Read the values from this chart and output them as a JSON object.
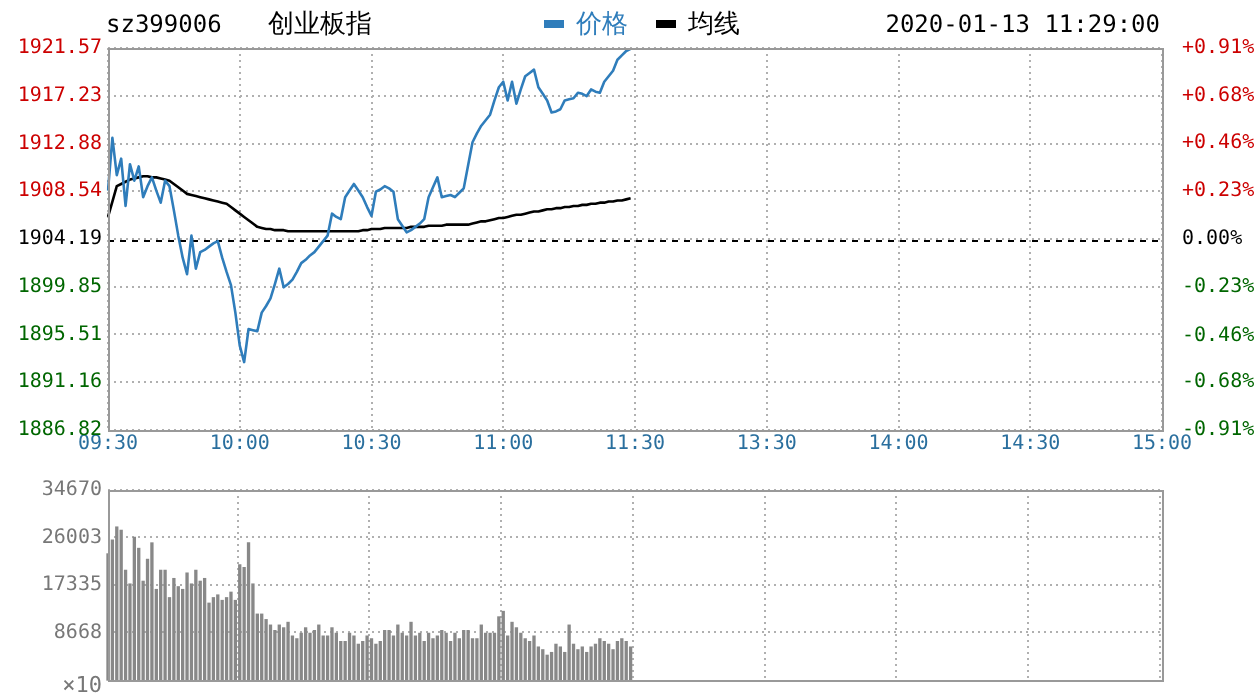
{
  "chart_data": [
    {
      "type": "line",
      "title": "创业板指",
      "subtitle": "sz399006",
      "annotations": [
        "2020-01-13 11:29:00"
      ],
      "legend": "top",
      "grid": true,
      "marker": "none",
      "line_style": "solid",
      "categories": [
        "09:30",
        null,
        null,
        null,
        null,
        null,
        null,
        null,
        null,
        null,
        null,
        null,
        null,
        null,
        null,
        null,
        null,
        null,
        null,
        null,
        null,
        null,
        null,
        null,
        null,
        null,
        null,
        null,
        null,
        null,
        "10:00",
        null,
        null,
        null,
        null,
        null,
        null,
        null,
        null,
        null,
        null,
        null,
        null,
        null,
        null,
        null,
        null,
        null,
        null,
        null,
        null,
        null,
        null,
        null,
        null,
        null,
        null,
        null,
        null,
        null,
        "10:30",
        null,
        null,
        null,
        null,
        null,
        null,
        null,
        null,
        null,
        null,
        null,
        null,
        null,
        null,
        null,
        null,
        null,
        null,
        null,
        null,
        null,
        null,
        null,
        null,
        null,
        null,
        null,
        null,
        null,
        "11:00",
        null,
        null,
        null,
        null,
        null,
        null,
        null,
        null,
        null,
        null,
        null,
        null,
        null,
        null,
        null,
        null,
        null,
        null,
        null,
        null,
        null,
        null,
        null,
        null,
        null,
        null,
        null,
        null,
        null,
        "11:30",
        null,
        null,
        null,
        null,
        null,
        null,
        null,
        null,
        null,
        null,
        null,
        null,
        null,
        null,
        null,
        null,
        null,
        null,
        null,
        null,
        null,
        null,
        null,
        null,
        null,
        null,
        null,
        null,
        null,
        "13:30",
        null,
        null,
        null,
        null,
        null,
        null,
        null,
        null,
        null,
        null,
        null,
        null,
        null,
        null,
        null,
        null,
        null,
        null,
        null,
        null,
        null,
        null,
        null,
        null,
        null,
        null,
        null,
        null,
        null,
        "14:00",
        null,
        null,
        null,
        null,
        null,
        null,
        null,
        null,
        null,
        null,
        null,
        null,
        null,
        null,
        null,
        null,
        null,
        null,
        null,
        null,
        null,
        null,
        null,
        null,
        null,
        null,
        null,
        null,
        null,
        "14:30",
        null,
        null,
        null,
        null,
        null,
        null,
        null,
        null,
        null,
        null,
        null,
        null,
        null,
        null,
        null,
        null,
        null,
        null,
        null,
        null,
        null,
        null,
        null,
        null,
        null,
        null,
        null,
        null,
        null,
        "15:00"
      ],
      "ylim": [
        1886.82,
        1921.57
      ],
      "yticks": [
        1886.82,
        1891.16,
        1895.51,
        1899.85,
        1904.19,
        1908.54,
        1912.88,
        1917.23,
        1921.57
      ],
      "y2lim": [
        -0.91,
        0.91
      ],
      "y2ticks": [
        {
          "value": -0.91,
          "label": "-0.91%"
        },
        {
          "value": -0.68,
          "label": "-0.68%"
        },
        {
          "value": -0.46,
          "label": "-0.46%"
        },
        {
          "value": -0.23,
          "label": "-0.23%"
        },
        {
          "value": 0,
          "label": "0.00%"
        },
        {
          "value": 0.23,
          "label": "+0.23%"
        },
        {
          "value": 0.46,
          "label": "+0.46%"
        },
        {
          "value": 0.68,
          "label": "+0.68%"
        },
        {
          "value": 0.91,
          "label": "+0.91%"
        }
      ],
      "ref_lines": [
        {
          "axis": "y",
          "value": 1904.19,
          "color": "#000000",
          "line_style": "dashed"
        }
      ],
      "series": [
        {
          "name": "价格",
          "color": "#2f7dbb",
          "values": [
            1908.6,
            1913.4,
            1910.0,
            1911.5,
            1907.2,
            1911.0,
            1909.5,
            1910.8,
            1908.0,
            1909.0,
            1909.8,
            1908.6,
            1907.5,
            1909.5,
            1909.0,
            1906.8,
            1904.5,
            1902.5,
            1901.0,
            1904.5,
            1901.5,
            1903.0,
            1903.2,
            1903.5,
            1903.8,
            1904.0,
            1902.5,
            1901.2,
            1900.0,
            1897.5,
            1894.5,
            1893.0,
            1896.0,
            1895.9,
            1895.8,
            1897.5,
            1898.1,
            1898.8,
            1900.1,
            1901.5,
            1899.8,
            1900.1,
            1900.5,
            1901.2,
            1902.0,
            1902.3,
            1902.7,
            1903.0,
            1903.5,
            1904.0,
            1904.5,
            1906.5,
            1906.2,
            1906.0,
            1908.0,
            1908.6,
            1909.2,
            1908.6,
            1908.0,
            1907.1,
            1906.3,
            1908.5,
            1908.7,
            1909.0,
            1908.8,
            1908.5,
            1906.0,
            1905.4,
            1904.8,
            1905.0,
            1905.3,
            1905.6,
            1906.0,
            1908.0,
            1908.9,
            1909.8,
            1908.0,
            1908.1,
            1908.2,
            1908.0,
            1908.4,
            1908.8,
            1910.9,
            1913.0,
            1913.8,
            1914.5,
            1915.0,
            1915.5,
            1916.8,
            1918.0,
            1918.5,
            1916.8,
            1918.5,
            1916.5,
            1917.8,
            1919.0,
            1919.3,
            1919.6,
            1918.0,
            1917.4,
            1916.8,
            1915.7,
            1915.8,
            1916.0,
            1916.8,
            1916.9,
            1917.0,
            1917.5,
            1917.4,
            1917.2,
            1917.8,
            1917.6,
            1917.5,
            1918.5,
            1919.0,
            1919.5,
            1920.5,
            1920.9,
            1921.3,
            1921.5,
            null,
            null,
            null,
            null,
            null,
            null,
            null,
            null,
            null,
            null,
            null,
            null,
            null,
            null,
            null,
            null,
            null,
            null,
            null,
            null,
            null,
            null,
            null,
            null,
            null,
            null,
            null,
            null,
            null,
            null,
            null,
            null,
            null,
            null,
            null,
            null,
            null,
            null,
            null,
            null,
            null,
            null,
            null,
            null,
            null,
            null,
            null,
            null,
            null,
            null,
            null,
            null,
            null,
            null,
            null,
            null,
            null,
            null,
            null,
            null,
            null,
            null,
            null,
            null,
            null,
            null,
            null,
            null,
            null,
            null,
            null,
            null,
            null,
            null,
            null,
            null,
            null,
            null,
            null,
            null,
            null,
            null,
            null,
            null,
            null,
            null,
            null,
            null,
            null,
            null,
            null,
            null,
            null,
            null,
            null,
            null,
            null,
            null,
            null,
            null,
            null,
            null,
            null,
            null,
            null,
            null,
            null,
            null,
            null,
            null,
            null,
            null,
            null,
            null,
            null,
            null,
            null,
            null,
            null,
            null,
            null
          ]
        },
        {
          "name": "均线",
          "color": "#000000",
          "values": [
            1906.2,
            1907.6,
            1909.0,
            1909.2,
            1909.4,
            1909.6,
            1909.7,
            1909.8,
            1909.9,
            1909.9,
            1909.8,
            1909.8,
            1909.7,
            1909.6,
            1909.5,
            1909.2,
            1908.9,
            1908.6,
            1908.3,
            1908.2,
            1908.1,
            1908.0,
            1907.9,
            1907.8,
            1907.7,
            1907.6,
            1907.5,
            1907.4,
            1907.1,
            1906.8,
            1906.5,
            1906.2,
            1905.9,
            1905.6,
            1905.3,
            1905.2,
            1905.1,
            1905.1,
            1905.0,
            1905.0,
            1905.0,
            1904.9,
            1904.9,
            1904.9,
            1904.9,
            1904.9,
            1904.9,
            1904.9,
            1904.9,
            1904.9,
            1904.9,
            1904.9,
            1904.9,
            1904.9,
            1904.9,
            1904.9,
            1904.9,
            1904.9,
            1905.0,
            1905.0,
            1905.1,
            1905.1,
            1905.1,
            1905.2,
            1905.2,
            1905.2,
            1905.2,
            1905.2,
            1905.2,
            1905.3,
            1905.3,
            1905.3,
            1905.3,
            1905.4,
            1905.4,
            1905.4,
            1905.4,
            1905.5,
            1905.5,
            1905.5,
            1905.5,
            1905.5,
            1905.5,
            1905.6,
            1905.7,
            1905.8,
            1905.8,
            1905.9,
            1906.0,
            1906.1,
            1906.1,
            1906.2,
            1906.3,
            1906.4,
            1906.4,
            1906.5,
            1906.6,
            1906.7,
            1906.7,
            1906.8,
            1906.9,
            1906.9,
            1907.0,
            1907.0,
            1907.1,
            1907.1,
            1907.2,
            1907.2,
            1907.3,
            1907.3,
            1907.4,
            1907.4,
            1907.5,
            1907.5,
            1907.6,
            1907.6,
            1907.7,
            1907.7,
            1907.8,
            1907.9,
            null,
            null,
            null,
            null,
            null,
            null,
            null,
            null,
            null,
            null,
            null,
            null,
            null,
            null,
            null,
            null,
            null,
            null,
            null,
            null,
            null,
            null,
            null,
            null,
            null,
            null,
            null,
            null,
            null,
            null,
            null,
            null,
            null,
            null,
            null,
            null,
            null,
            null,
            null,
            null,
            null,
            null,
            null,
            null,
            null,
            null,
            null,
            null,
            null,
            null,
            null,
            null,
            null,
            null,
            null,
            null,
            null,
            null,
            null,
            null,
            null,
            null,
            null,
            null,
            null,
            null,
            null,
            null,
            null,
            null,
            null,
            null,
            null,
            null,
            null,
            null,
            null,
            null,
            null,
            null,
            null,
            null,
            null,
            null,
            null,
            null,
            null,
            null,
            null,
            null,
            null,
            null,
            null,
            null,
            null,
            null,
            null,
            null,
            null,
            null,
            null,
            null,
            null,
            null,
            null,
            null,
            null,
            null,
            null,
            null,
            null,
            null,
            null,
            null,
            null,
            null,
            null,
            null,
            null,
            null,
            null
          ]
        }
      ]
    },
    {
      "type": "bar",
      "grid": true,
      "tick_labels": "y",
      "color": "#888888",
      "annotations": [
        "×10"
      ],
      "categories": [
        null,
        null,
        null,
        null,
        null,
        null,
        null,
        null,
        null,
        null,
        null,
        null,
        null,
        null,
        null,
        null,
        null,
        null,
        null,
        null,
        null,
        null,
        null,
        null,
        null,
        null,
        null,
        null,
        null,
        null,
        null,
        null,
        null,
        null,
        null,
        null,
        null,
        null,
        null,
        null,
        null,
        null,
        null,
        null,
        null,
        null,
        null,
        null,
        null,
        null,
        null,
        null,
        null,
        null,
        null,
        null,
        null,
        null,
        null,
        null,
        null,
        null,
        null,
        null,
        null,
        null,
        null,
        null,
        null,
        null,
        null,
        null,
        null,
        null,
        null,
        null,
        null,
        null,
        null,
        null,
        null,
        null,
        null,
        null,
        null,
        null,
        null,
        null,
        null,
        null,
        null,
        null,
        null,
        null,
        null,
        null,
        null,
        null,
        null,
        null,
        null,
        null,
        null,
        null,
        null,
        null,
        null,
        null,
        null,
        null,
        null,
        null,
        null,
        null,
        null,
        null,
        null,
        null,
        null,
        null,
        null,
        null,
        null,
        null,
        null,
        null,
        null,
        null,
        null,
        null,
        null,
        null,
        null,
        null,
        null,
        null,
        null,
        null,
        null,
        null,
        null,
        null,
        null,
        null,
        null,
        null,
        null,
        null,
        null,
        null,
        null,
        null,
        null,
        null,
        null,
        null,
        null,
        null,
        null,
        null,
        null,
        null,
        null,
        null,
        null,
        null,
        null,
        null,
        null,
        null,
        null,
        null,
        null,
        null,
        null,
        null,
        null,
        null,
        null,
        null,
        null,
        null,
        null,
        null,
        null,
        null,
        null,
        null,
        null,
        null,
        null,
        null,
        null,
        null,
        null,
        null,
        null,
        null,
        null,
        null,
        null,
        null,
        null,
        null,
        null,
        null,
        null,
        null,
        null,
        null,
        null,
        null,
        null,
        null,
        null,
        null,
        null,
        null,
        null,
        null,
        null,
        null,
        null,
        null,
        null,
        null,
        null,
        null,
        null,
        null,
        null,
        null,
        null,
        null,
        null,
        null,
        null,
        null,
        null,
        null,
        null
      ],
      "ylim": [
        0,
        34670
      ],
      "yticks": [
        8668,
        17335,
        26003,
        34670
      ],
      "values": [
        23000,
        25500,
        27900,
        27300,
        20000,
        17500,
        26000,
        24000,
        18000,
        22000,
        25000,
        16500,
        20000,
        20000,
        15000,
        18500,
        17000,
        16500,
        19500,
        17500,
        20000,
        18000,
        18500,
        14000,
        15000,
        15500,
        14500,
        15000,
        16000,
        14500,
        21000,
        20500,
        25000,
        17500,
        12000,
        12000,
        11000,
        10000,
        9000,
        10000,
        9500,
        10500,
        8000,
        7500,
        8500,
        9500,
        8500,
        9000,
        10000,
        8000,
        8000,
        9500,
        8500,
        7000,
        7000,
        8500,
        8000,
        6500,
        7000,
        8000,
        7500,
        6500,
        7000,
        9000,
        9000,
        8000,
        10000,
        8500,
        8000,
        10500,
        8000,
        8500,
        7000,
        8500,
        7500,
        8000,
        9000,
        8500,
        7000,
        8500,
        7500,
        9000,
        9000,
        7500,
        7500,
        10000,
        8500,
        8500,
        8500,
        11500,
        12500,
        8000,
        10500,
        9500,
        8500,
        7500,
        7000,
        8000,
        6000,
        5500,
        4500,
        5000,
        6500,
        6000,
        5000,
        10000,
        6500,
        5500,
        6000,
        5000,
        6000,
        6500,
        7500,
        7000,
        6500,
        5500,
        7000,
        7500,
        7000,
        6000,
        null,
        null,
        null,
        null,
        null,
        null,
        null,
        null,
        null,
        null,
        null,
        null,
        null,
        null,
        null,
        null,
        null,
        null,
        null,
        null,
        null,
        null,
        null,
        null,
        null,
        null,
        null,
        null,
        null,
        null,
        null,
        null,
        null,
        null,
        null,
        null,
        null,
        null,
        null,
        null,
        null,
        null,
        null,
        null,
        null,
        null,
        null,
        null,
        null,
        null,
        null,
        null,
        null,
        null,
        null,
        null,
        null,
        null,
        null,
        null,
        null,
        null,
        null,
        null,
        null,
        null,
        null,
        null,
        null,
        null,
        null,
        null,
        null,
        null,
        null,
        null,
        null,
        null,
        null,
        null,
        null,
        null,
        null,
        null,
        null,
        null,
        null,
        null,
        null,
        null,
        null,
        null,
        null,
        null,
        null,
        null,
        null,
        null,
        null,
        null,
        null,
        null,
        null,
        null,
        null,
        null,
        null,
        null,
        null,
        null,
        null,
        null,
        null,
        null,
        null,
        null,
        null,
        null,
        null,
        null,
        null
      ]
    }
  ]
}
